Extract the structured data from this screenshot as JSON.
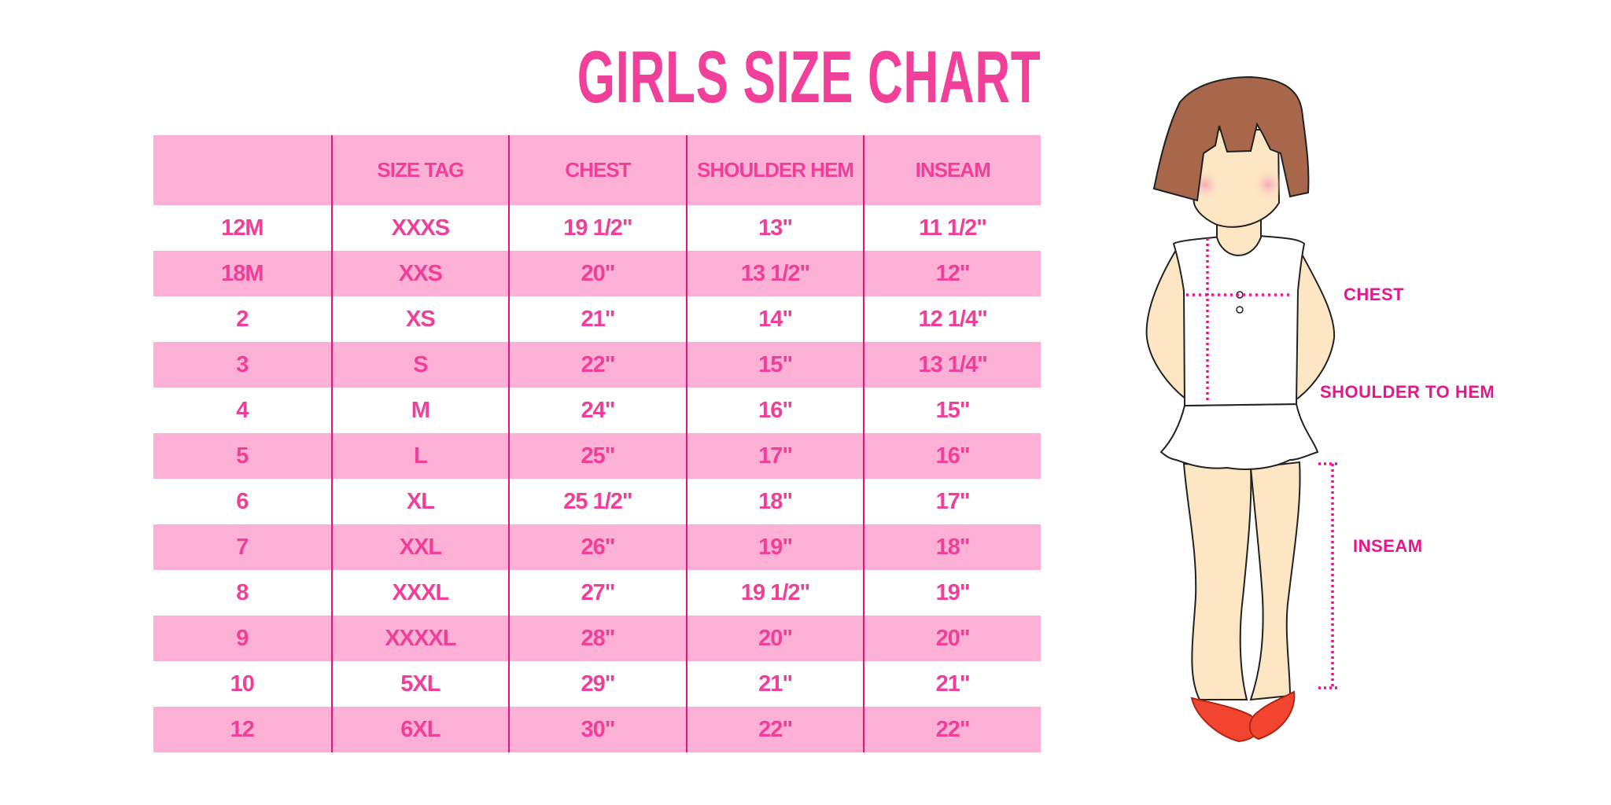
{
  "title": "GIRLS SIZE CHART",
  "colors": {
    "accent_text": "#ef3f98",
    "row_pink": "#fcb0d5",
    "divider": "#e3137f",
    "label": "#e8158a"
  },
  "table": {
    "headers": [
      "",
      "SIZE TAG",
      "CHEST",
      "SHOULDER HEM",
      "INSEAM"
    ],
    "rows": [
      [
        "12M",
        "XXXS",
        "19 1/2\"",
        "13\"",
        "11 1/2\""
      ],
      [
        "18M",
        "XXS",
        "20\"",
        "13 1/2\"",
        "12\""
      ],
      [
        "2",
        "XS",
        "21\"",
        "14\"",
        "12 1/4\""
      ],
      [
        "3",
        "S",
        "22\"",
        "15\"",
        "13 1/4\""
      ],
      [
        "4",
        "M",
        "24\"",
        "16\"",
        "15\""
      ],
      [
        "5",
        "L",
        "25\"",
        "17\"",
        "16\""
      ],
      [
        "6",
        "XL",
        "25 1/2\"",
        "18\"",
        "17\""
      ],
      [
        "7",
        "XXL",
        "26\"",
        "19\"",
        "18\""
      ],
      [
        "8",
        "XXXL",
        "27\"",
        "19 1/2\"",
        "19\""
      ],
      [
        "9",
        "XXXXL",
        "28\"",
        "20\"",
        "20\""
      ],
      [
        "10",
        "5XL",
        "29\"",
        "21\"",
        "21\""
      ],
      [
        "12",
        "6XL",
        "30\"",
        "22\"",
        "22\""
      ]
    ]
  },
  "illustration": {
    "labels": {
      "chest": "CHEST",
      "shoulder_to_hem": "SHOULDER TO HEM",
      "inseam": "INSEAM"
    }
  }
}
